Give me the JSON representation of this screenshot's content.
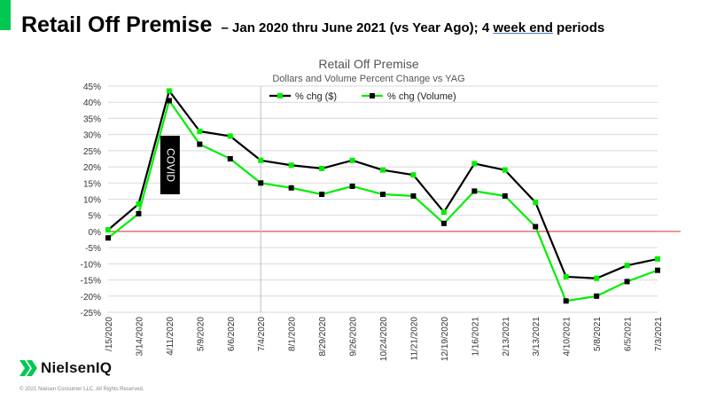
{
  "slide": {
    "title_main": "Retail Off Premise",
    "title_sub_before": " – Jan 2020 thru June 2021 (vs Year Ago); 4 ",
    "title_sub_underlined": "week end",
    "title_sub_after": " periods"
  },
  "brand": {
    "name": "NielsenIQ",
    "copyright": "© 2021 Nielsen Consumer LLC. All Rights Reserved.",
    "accent_color": "#00c853"
  },
  "chart_data": {
    "type": "line",
    "title": "Retail Off Premise",
    "subtitle": "Dollars and Volume Percent Change vs YAG",
    "categories": [
      "2/15/2020",
      "3/14/2020",
      "4/11/2020",
      "5/9/2020",
      "6/6/2020",
      "7/4/2020",
      "8/1/2020",
      "8/29/2020",
      "9/26/2020",
      "10/24/2020",
      "11/21/2020",
      "12/19/2020",
      "1/16/2021",
      "2/13/2021",
      "3/13/2021",
      "4/10/2021",
      "5/8/2021",
      "6/5/2021",
      "7/3/2021"
    ],
    "category_labels": [
      "/15/2020",
      "3/14/2020",
      "4/11/2020",
      "5/9/2020",
      "6/6/2020",
      "7/4/2020",
      "8/1/2020",
      "8/29/2020",
      "9/26/2020",
      "10/24/2020",
      "11/21/2020",
      "12/19/2020",
      "1/16/2021",
      "2/13/2021",
      "3/13/2021",
      "4/10/2021",
      "5/8/2021",
      "6/5/2021",
      "7/3/2021"
    ],
    "series": [
      {
        "name": "% chg ($)",
        "line_color": "#000000",
        "marker_color": "#00ee00",
        "values": [
          0.5,
          8.5,
          43.5,
          31,
          29.5,
          22,
          20.5,
          19.5,
          22,
          19,
          17.5,
          6,
          21,
          19,
          9,
          -14,
          -14.5,
          -10.5,
          -8.5
        ]
      },
      {
        "name": "% chg (Volume)",
        "line_color": "#00ee00",
        "marker_color": "#000000",
        "values": [
          -2,
          5.5,
          40.5,
          27,
          22.5,
          15,
          13.5,
          11.5,
          14,
          11.5,
          11,
          2.5,
          12.5,
          11,
          1.5,
          -21.5,
          -20,
          -15.5,
          -12
        ]
      }
    ],
    "ylim": [
      -25,
      45
    ],
    "yticks": [
      45,
      40,
      35,
      30,
      25,
      20,
      15,
      10,
      5,
      0,
      -5,
      -10,
      -15,
      -20,
      -25
    ],
    "ytick_labels": [
      "45%",
      "40%",
      "35%",
      "30%",
      "25%",
      "20%",
      "15%",
      "10%",
      "5%",
      "0%",
      "-5%",
      "-10%",
      "-15%",
      "-20%",
      "-25%"
    ],
    "grid": true,
    "legend_position": "top-center",
    "zero_line_color": "#e03030",
    "annotation": {
      "text": "COVID",
      "category_index": 2
    },
    "vertical_marker_category_index": 5
  }
}
